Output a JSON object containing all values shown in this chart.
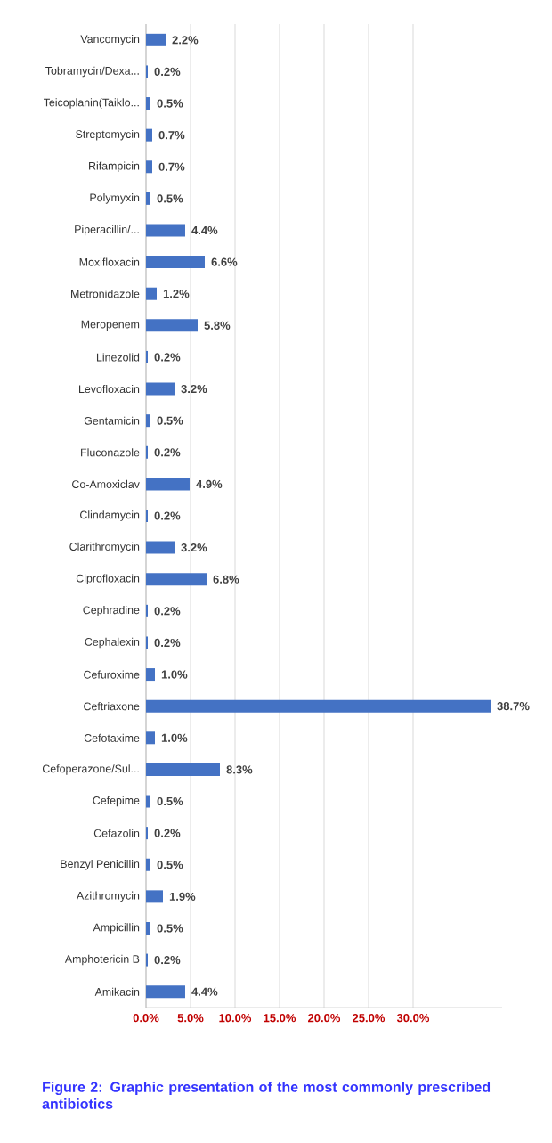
{
  "chart_data": {
    "type": "bar",
    "orientation": "horizontal",
    "title": "Figure 2: Graphic presentation of the most commonly prescribed antibiotics",
    "categories": [
      "Vancomycin",
      "Tobramycin/Dexa...",
      "Teicoplanin(Taiklo...",
      "Streptomycin",
      "Rifampicin",
      "Polymyxin",
      "Piperacillin/...",
      "Moxifloxacin",
      "Metronidazole",
      "Meropenem",
      "Linezolid",
      "Levofloxacin",
      "Gentamicin",
      "Fluconazole",
      "Co-Amoxiclav",
      "Clindamycin",
      "Clarithromycin",
      "Ciprofloxacin",
      "Cephradine",
      "Cephalexin",
      "Cefuroxime",
      "Ceftriaxone",
      "Cefotaxime",
      "Cefoperazone/Sul...",
      "Cefepime",
      "Cefazolin",
      "Benzyl Penicillin",
      "Azithromycin",
      "Ampicillin",
      "Amphotericin B",
      "Amikacin"
    ],
    "values": [
      2.2,
      0.2,
      0.5,
      0.7,
      0.7,
      0.5,
      4.4,
      6.6,
      1.2,
      5.8,
      0.2,
      3.2,
      0.5,
      0.2,
      4.9,
      0.2,
      3.2,
      6.8,
      0.2,
      0.2,
      1.0,
      38.7,
      1.0,
      8.3,
      0.5,
      0.2,
      0.5,
      1.9,
      0.5,
      0.2,
      4.4
    ],
    "value_labels": [
      "2.2%",
      "0.2%",
      "0.5%",
      "0.7%",
      "0.7%",
      "0.5%",
      "4.4%",
      "6.6%",
      "1.2%",
      "5.8%",
      "0.2%",
      "3.2%",
      "0.5%",
      "0.2%",
      "4.9%",
      "0.2%",
      "3.2%",
      "6.8%",
      "0.2%",
      "0.2%",
      "1.0%",
      "38.7%",
      "1.0%",
      "8.3%",
      "0.5%",
      "0.2%",
      "0.5%",
      "1.9%",
      "0.5%",
      "0.2%",
      "4.4%"
    ],
    "color": "#4472c4",
    "xlim": [
      0,
      40
    ],
    "xticks": [
      {
        "value": 0,
        "label": "0.0%"
      },
      {
        "value": 5,
        "label": "5.0%"
      },
      {
        "value": 10,
        "label": "10.0%"
      },
      {
        "value": 15,
        "label": "15.0%"
      },
      {
        "value": 20,
        "label": "20.0%"
      },
      {
        "value": 25,
        "label": "25.0%"
      },
      {
        "value": 30,
        "label": "30.0%"
      }
    ],
    "grid": "x"
  }
}
